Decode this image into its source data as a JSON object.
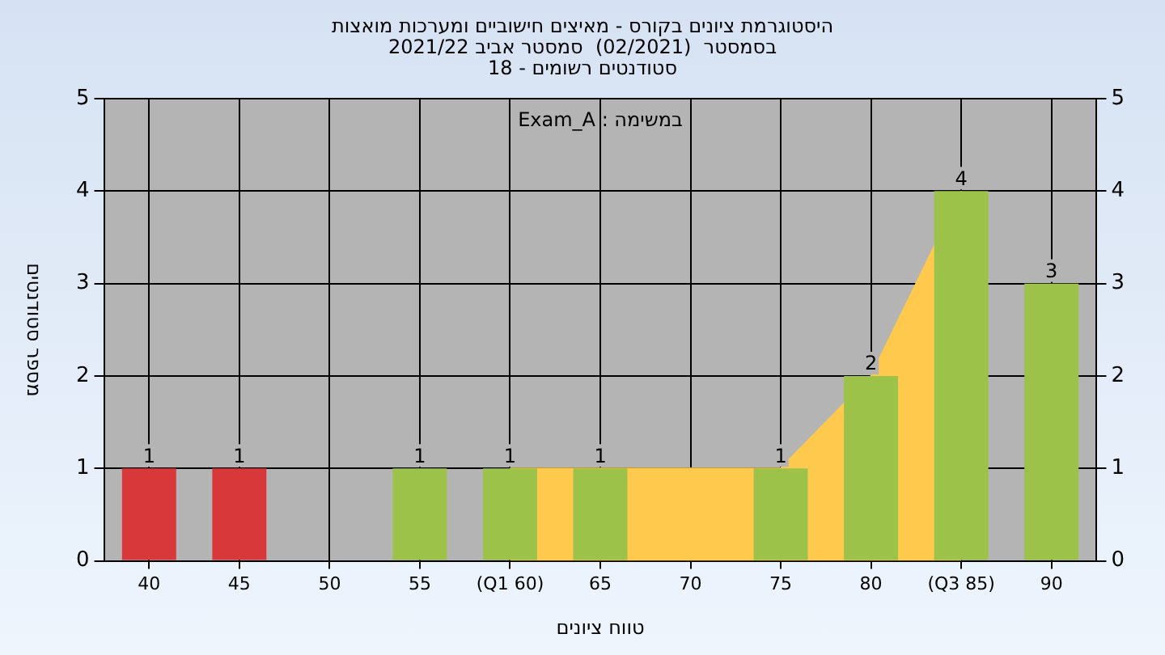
{
  "chart_data": {
    "type": "bar",
    "title": "היסטוגרמת ציונים בקורס - מאיצים חישוביים ומערכות מואצות",
    "subtitle": "בסמסטר  (02/2021)  סמסטר אביב 2021/22\nסטודנטים רשומים - 18",
    "xlabel": "טווח ציונים",
    "ylabel": "מספר סטודנטים",
    "annotations": [
      "במשימה : Exam_A"
    ],
    "categories": [
      "40",
      "45",
      "50",
      "55",
      "(Q1 60)",
      "65",
      "70",
      "75",
      "80",
      "(Q3 85)",
      "90"
    ],
    "series": [
      {
        "type": "area",
        "color": "#ffc94d",
        "values": [
          null,
          null,
          null,
          null,
          1,
          1,
          1,
          1,
          2,
          4,
          null
        ]
      },
      {
        "colors": [
          "#d8383a",
          "#d8383a",
          "#9cc24a",
          "#9cc24a",
          "#9cc24a",
          "#9cc24a",
          "#9cc24a",
          "#9cc24a",
          "#9cc24a",
          "#9cc24a",
          "#9cc24a"
        ],
        "values": [
          1,
          1,
          0,
          1,
          1,
          1,
          0,
          1,
          2,
          4,
          3
        ],
        "value_labels": [
          "1",
          "1",
          null,
          "1",
          "1",
          "1",
          null,
          "1",
          "2",
          "4",
          "3"
        ]
      }
    ],
    "ylim": [
      0,
      5
    ],
    "yticks": [
      0,
      1,
      2,
      3,
      4,
      5
    ],
    "y2lim": [
      0,
      5
    ],
    "y2ticks": [
      0,
      1,
      2,
      3,
      4,
      5
    ],
    "grid": true,
    "legend": false
  }
}
